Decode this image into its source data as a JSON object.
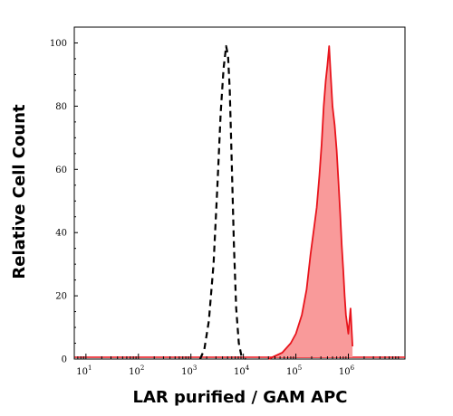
{
  "chart_data": {
    "type": "area",
    "xlabel": "LAR purified / GAM APC",
    "ylabel": "Relative Cell Count",
    "x_scale": "log",
    "xlim": [
      6,
      12000000
    ],
    "ylim": [
      0,
      105
    ],
    "x_ticks": [
      {
        "value": 10,
        "base": "10",
        "exp": "1"
      },
      {
        "value": 100,
        "base": "10",
        "exp": "2"
      },
      {
        "value": 1000,
        "base": "10",
        "exp": "3"
      },
      {
        "value": 10000,
        "base": "10",
        "exp": "4"
      },
      {
        "value": 100000,
        "base": "10",
        "exp": "5"
      },
      {
        "value": 1000000,
        "base": "10",
        "exp": "6"
      }
    ],
    "y_ticks": [
      0,
      20,
      40,
      60,
      80,
      100
    ],
    "grid": false,
    "series": [
      {
        "style": "dashed",
        "color": "#000000",
        "x": [
          1500,
          1800,
          2200,
          2700,
          3200,
          3700,
          4200,
          4700,
          5100,
          5500,
          6000,
          6600,
          7300,
          8200,
          9200,
          11000
        ],
        "y": [
          0,
          3,
          12,
          30,
          55,
          78,
          92,
          99,
          96,
          85,
          62,
          36,
          16,
          5,
          1,
          0
        ]
      },
      {
        "style": "filled",
        "color": "#e8141c",
        "fill": "#f99a9a",
        "x": [
          30000,
          55000,
          80000,
          100000,
          130000,
          160000,
          190000,
          220000,
          250000,
          280000,
          310000,
          340000,
          370000,
          400000,
          430000,
          460000,
          500000,
          550000,
          600000,
          650000,
          700000,
          750000,
          800000,
          850000,
          900000,
          1000000,
          1100000,
          1200000
        ],
        "y": [
          0,
          2,
          5,
          8,
          14,
          22,
          33,
          41,
          48,
          58,
          68,
          80,
          88,
          93,
          99,
          90,
          80,
          74,
          66,
          56,
          46,
          36,
          28,
          20,
          14,
          8,
          16,
          4
        ]
      }
    ]
  }
}
